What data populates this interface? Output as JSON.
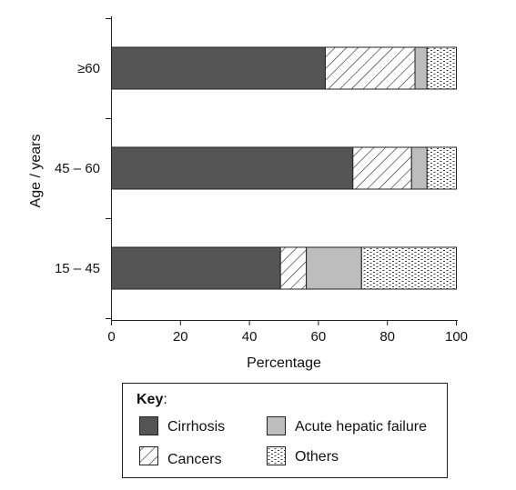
{
  "chart_data": {
    "type": "bar",
    "orientation": "horizontal",
    "stacked": true,
    "categories": [
      "≥60",
      "45 – 60",
      "15 – 45"
    ],
    "series": [
      {
        "name": "Cirrhosis",
        "values": [
          62,
          70,
          49
        ],
        "fill": "#555555",
        "pattern": "solid"
      },
      {
        "name": "Cancers",
        "values": [
          26,
          17,
          7.5
        ],
        "fill": "#ffffff",
        "pattern": "hatch"
      },
      {
        "name": "Acute hepatic failure",
        "values": [
          3.5,
          4.5,
          16
        ],
        "fill": "#bdbdbd",
        "pattern": "solid"
      },
      {
        "name": "Others",
        "values": [
          8.5,
          8.5,
          27.5
        ],
        "fill": "#ffffff",
        "pattern": "dots"
      }
    ],
    "xlabel": "Percentage",
    "ylabel": "Age / years",
    "xlim": [
      0,
      100
    ],
    "xticks": [
      0,
      20,
      40,
      60,
      80,
      100
    ],
    "grid": false,
    "legend": {
      "title": "Key",
      "title_suffix": ":",
      "placement": "bottom"
    }
  }
}
